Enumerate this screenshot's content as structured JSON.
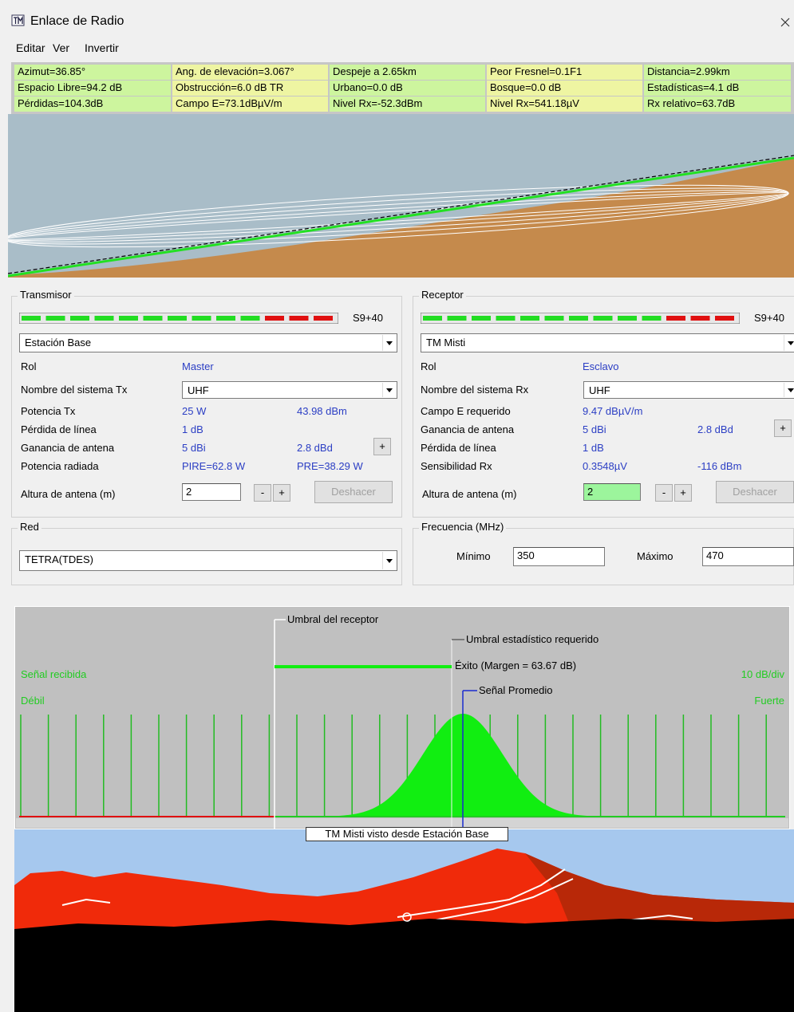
{
  "window": {
    "title": "Enlace de Radio"
  },
  "menu": [
    "Editar",
    "Ver",
    "Invertir"
  ],
  "summary": [
    [
      "Azimut=36.85°",
      "Ang. de elevación=3.067°",
      "Despeje a 2.65km",
      "Peor Fresnel=0.1F1",
      "Distancia=2.99km"
    ],
    [
      "Espacio Libre=94.2 dB",
      "Obstrucción=6.0 dB TR",
      "Urbano=0.0 dB",
      "Bosque=0.0 dB",
      "Estadísticas=4.1 dB"
    ],
    [
      "Pérdidas=104.3dB",
      "Campo E=73.1dBµV/m",
      "Nivel Rx=-52.3dBm",
      "Nivel Rx=541.18µV",
      "Rx relativo=63.7dB"
    ]
  ],
  "transmitter": {
    "heading": "Transmisor",
    "signal_level": "S9+40",
    "station": "Estación Base",
    "role_label": "Rol",
    "role": "Master",
    "system_label": "Nombre del sistema Tx",
    "system": "UHF",
    "power_label": "Potencia Tx",
    "power_w": "25 W",
    "power_dbm": "43.98 dBm",
    "line_loss_label": "Pérdida de línea",
    "line_loss": "1 dB",
    "gain_label": "Ganancia de antena",
    "gain_dbi": "5 dBi",
    "gain_dbd": "2.8 dBd",
    "gain_button": "+",
    "radiated_label": "Potencia radiada",
    "pire": "PIRE=62.8 W",
    "pre": "PRE=38.29 W",
    "height_label": "Altura de antena (m)",
    "height": "2",
    "minus_button": "-",
    "plus_button": "+",
    "undo_button": "Deshacer"
  },
  "receiver": {
    "heading": "Receptor",
    "signal_level": "S9+40",
    "station": "TM Misti",
    "role_label": "Rol",
    "role": "Esclavo",
    "system_label": "Nombre del sistema Rx",
    "system": "UHF",
    "field_label": "Campo E requerido",
    "field": "9.47 dBµV/m",
    "gain_label": "Ganancia de antena",
    "gain_dbi": "5 dBi",
    "gain_dbd": "2.8 dBd",
    "gain_button": "+",
    "line_loss_label": "Pérdida de línea",
    "line_loss": "1 dB",
    "sensitivity_label": "Sensibilidad Rx",
    "sensitivity": "0.3548µV",
    "sensitivity_dbm": "-116 dBm",
    "height_label": "Altura de antena (m)",
    "height": "2",
    "minus_button": "-",
    "plus_button": "+",
    "undo_button": "Deshacer"
  },
  "network": {
    "heading": "Red",
    "value": "TETRA(TDES)"
  },
  "frequency": {
    "heading": "Frecuencia (MHz)",
    "min_label": "Mínimo",
    "min": "350",
    "max_label": "Máximo",
    "max": "470"
  },
  "signal_chart": {
    "receiver_threshold": "Umbral del receptor",
    "statistical_threshold": "Umbral estadístico requerido",
    "success": "Éxito (Margen = 63.67 dB)",
    "average_signal": "Señal Promedio",
    "received_signal": "Señal recibida",
    "scale": "10 dB/div",
    "weak": "Débil",
    "strong": "Fuerte"
  },
  "panorama": {
    "caption": "TM Misti visto desde Estación Base"
  }
}
